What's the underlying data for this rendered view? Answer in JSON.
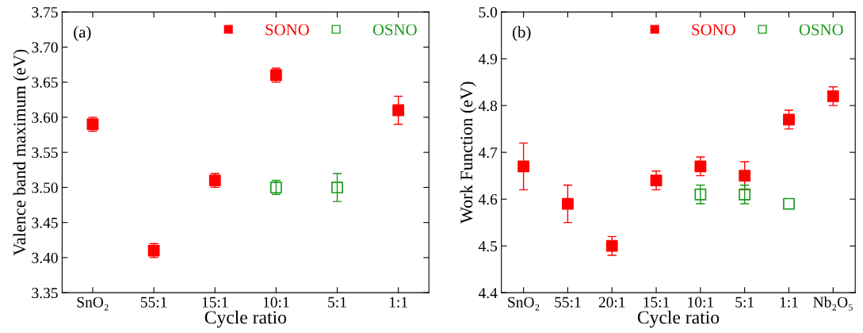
{
  "chart_data": [
    {
      "type": "scatter",
      "xlabel": "Cycle ratio",
      "ylabel": "Valence band maximum (eV)",
      "annotations": [
        "(a)"
      ],
      "categories": [
        "SnO₂",
        "55:1",
        "15:1",
        "10:1",
        "5:1",
        "1:1"
      ],
      "ylim": [
        3.35,
        3.75
      ],
      "yticks": [
        {
          "value": 3.35,
          "label": "3.35"
        },
        {
          "value": 3.4,
          "label": "3.40"
        },
        {
          "value": 3.45,
          "label": "3.45"
        },
        {
          "value": 3.5,
          "label": "3.50"
        },
        {
          "value": 3.55,
          "label": "3.55"
        },
        {
          "value": 3.6,
          "label": "3.60"
        },
        {
          "value": 3.65,
          "label": "3.65"
        },
        {
          "value": 3.7,
          "label": "3.70"
        },
        {
          "value": 3.75,
          "label": "3.75"
        }
      ],
      "marker": "square",
      "legend": "top right",
      "grid": false,
      "series": [
        {
          "name": "SONO",
          "color": "#ff0000",
          "values": [
            3.59,
            3.41,
            3.51,
            3.66,
            null,
            3.61
          ],
          "errors": [
            0.01,
            0.01,
            0.01,
            0.01,
            null,
            0.02
          ]
        },
        {
          "name": "OSNO",
          "color": "#1a9a1a",
          "values": [
            null,
            null,
            null,
            3.5,
            3.5,
            null
          ],
          "errors": [
            null,
            null,
            null,
            0.01,
            0.02,
            null
          ]
        }
      ]
    },
    {
      "type": "scatter",
      "xlabel": "Cycle ratio",
      "ylabel": "Work Function (eV)",
      "annotations": [
        "(b)"
      ],
      "categories": [
        "SnO₂",
        "55:1",
        "20:1",
        "15:1",
        "10:1",
        "5:1",
        "1:1",
        "Nb₂O₅"
      ],
      "ylim": [
        4.4,
        5.0
      ],
      "yticks": [
        4.4,
        4.5,
        4.6,
        4.7,
        4.8,
        4.9,
        {
          "value": 5.0,
          "label": "5.0"
        }
      ],
      "marker": "square",
      "legend": "top right",
      "grid": false,
      "series": [
        {
          "name": "SONO",
          "color": "#ff0000",
          "values": [
            4.67,
            4.59,
            4.5,
            4.64,
            4.67,
            4.65,
            4.77,
            4.82
          ],
          "errors": [
            0.05,
            0.04,
            0.02,
            0.02,
            0.02,
            0.03,
            0.02,
            0.02
          ]
        },
        {
          "name": "OSNO",
          "color": "#1a9a1a",
          "values": [
            null,
            null,
            null,
            null,
            4.61,
            4.61,
            4.59,
            null
          ],
          "errors": [
            null,
            null,
            null,
            null,
            0.02,
            0.02,
            null,
            null
          ]
        }
      ]
    }
  ]
}
